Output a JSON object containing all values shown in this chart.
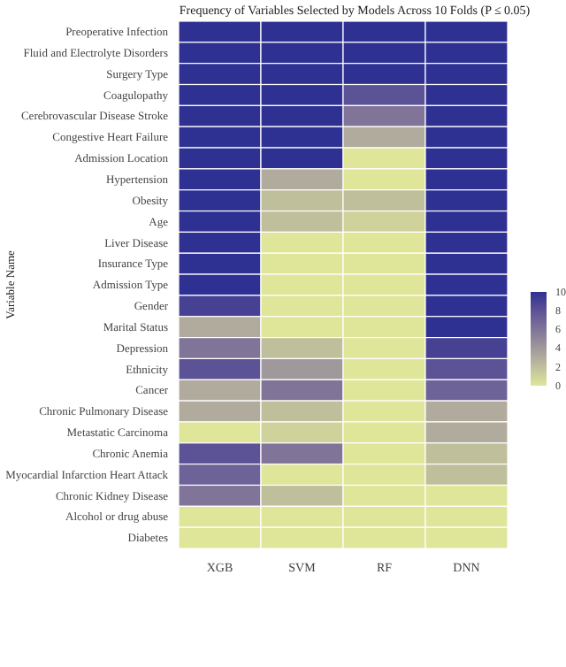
{
  "chart_data": {
    "type": "heatmap",
    "title": "Frequency of Variables Selected by Models Across 10 Folds (P ≤ 0.05)",
    "ylabel": "Variable Name",
    "categories": [
      "XGB",
      "SVM",
      "RF",
      "DNN"
    ],
    "y_categories": [
      "Preoperative Infection",
      "Fluid and Electrolyte Disorders",
      "Surgery Type",
      "Coagulopathy",
      "Cerebrovascular Disease Stroke",
      "Congestive Heart Failure",
      "Admission Location",
      "Hypertension",
      "Obesity",
      "Age",
      "Liver Disease",
      "Insurance Type",
      "Admission Type",
      "Gender",
      "Marital Status",
      "Depression",
      "Ethnicity",
      "Cancer",
      "Chronic Pulmonary Disease",
      "Metastatic Carcinoma",
      "Chronic Anemia",
      "Myocardial Infarction Heart Attack",
      "Chronic Kidney Disease",
      "Alcohol or drug abuse",
      "Diabetes"
    ],
    "cells": [
      [
        10,
        10,
        10,
        10
      ],
      [
        10,
        10,
        10,
        10
      ],
      [
        10,
        10,
        10,
        10
      ],
      [
        10,
        10,
        8,
        10
      ],
      [
        10,
        10,
        6,
        10
      ],
      [
        10,
        10,
        3,
        10
      ],
      [
        10,
        10,
        0,
        10
      ],
      [
        10,
        3,
        0,
        10
      ],
      [
        10,
        2,
        2,
        10
      ],
      [
        10,
        2,
        1,
        10
      ],
      [
        10,
        0,
        0,
        10
      ],
      [
        10,
        0,
        0,
        10
      ],
      [
        10,
        0,
        0,
        10
      ],
      [
        9,
        0,
        0,
        10
      ],
      [
        3,
        0,
        0,
        10
      ],
      [
        6,
        2,
        0,
        9
      ],
      [
        8,
        4,
        0,
        8
      ],
      [
        3,
        6,
        0,
        7
      ],
      [
        3,
        2,
        0,
        3
      ],
      [
        0,
        1,
        0,
        3
      ],
      [
        8,
        6,
        0,
        2
      ],
      [
        7,
        0,
        0,
        2
      ],
      [
        6,
        2,
        0,
        0
      ],
      [
        0,
        0,
        0,
        0
      ],
      [
        0,
        0,
        0,
        0
      ]
    ],
    "clim": [
      0,
      10
    ],
    "cticks": [
      0,
      2,
      4,
      6,
      8,
      10
    ]
  }
}
